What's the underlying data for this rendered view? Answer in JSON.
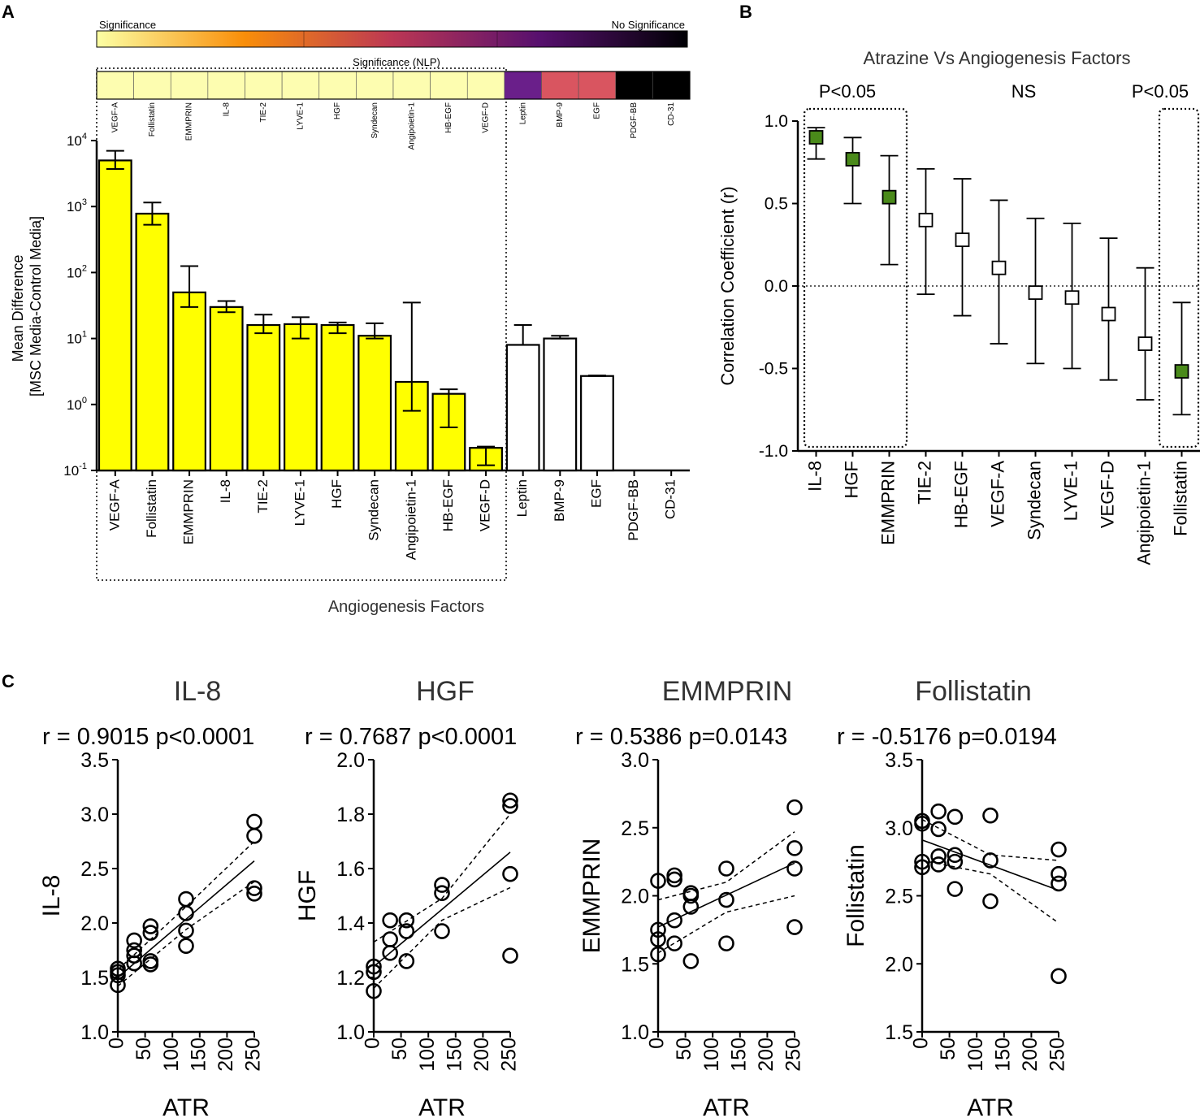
{
  "panels": {
    "a": "A",
    "b": "B",
    "c": "C"
  },
  "colors": {
    "significant_bar": "#ffff00",
    "nonsignificant_bar": "#ffffff",
    "significant_marker": "#4a8a1a",
    "nonsignificant_marker": "#ffffff",
    "nlp_scale": [
      "#fcffa4",
      "#f98e09",
      "#bc3754",
      "#57106e",
      "#000004"
    ]
  },
  "chart_data": [
    {
      "id": "panel-a",
      "type": "bar",
      "title": "",
      "xlabel": "Angiogenesis Factors",
      "ylabel_lines": [
        "Mean Difference",
        "[MSC Media-Control Media]"
      ],
      "yscale": "log",
      "ylim": [
        0.1,
        10000
      ],
      "yticks": [
        {
          "value": 0.1,
          "base": "10",
          "exp": "-1"
        },
        {
          "value": 1,
          "base": "10",
          "exp": "0"
        },
        {
          "value": 10,
          "base": "10",
          "exp": "1"
        },
        {
          "value": 100,
          "base": "10",
          "exp": "2"
        },
        {
          "value": 1000,
          "base": "10",
          "exp": "3"
        },
        {
          "value": 10000,
          "base": "10",
          "exp": "4"
        }
      ],
      "categories": [
        "VEGF-A",
        "Follistatin",
        "EMMPRIN",
        "IL-8",
        "TIE-2",
        "LYVE-1",
        "HGF",
        "Syndecan",
        "Angipoietin-1",
        "HB-EGF",
        "VEGF-D",
        "Leptin",
        "BMP-9",
        "EGF",
        "PDGF-BB",
        "CD-31"
      ],
      "values": [
        5000,
        780,
        50,
        30,
        16,
        16.5,
        16,
        11,
        2.2,
        1.45,
        0.22,
        8,
        10,
        2.7,
        null,
        null
      ],
      "err_low": [
        3700,
        530,
        30,
        25,
        12,
        10,
        12,
        10,
        0.8,
        0.45,
        0.12,
        null,
        10,
        2.7,
        null,
        null
      ],
      "err_high": [
        7000,
        1150,
        125,
        37,
        23,
        21,
        17.5,
        17,
        35,
        1.7,
        0.23,
        16,
        11,
        2.75,
        null,
        null
      ],
      "significant": [
        true,
        true,
        true,
        true,
        true,
        true,
        true,
        true,
        true,
        true,
        true,
        false,
        false,
        false,
        false,
        false
      ],
      "scale_labels": {
        "left": "Significance",
        "right": "No Significance"
      },
      "nlp_title": "Significance (NLP)",
      "nlp_colors": [
        "#fdfdb0",
        "#fdfdb0",
        "#fdfdb0",
        "#fdfdb0",
        "#fdfdb0",
        "#fdfdb0",
        "#fdfdb0",
        "#fdfdb0",
        "#fdfdb0",
        "#fdfdb0",
        "#fdfdb0",
        "#6a1f8a",
        "#d95560",
        "#d95560",
        "#000000",
        "#000000"
      ]
    },
    {
      "id": "panel-b",
      "type": "scatter",
      "title": "Atrazine Vs Angiogenesis Factors",
      "ylabel": "Correlation Coefficient (r)",
      "ylim": [
        -1.0,
        1.0
      ],
      "yticks": [
        "-1.0",
        "-0.5",
        "0.0",
        "0.5",
        "1.0"
      ],
      "group_labels": [
        "P<0.05",
        "NS",
        "P<0.05"
      ],
      "categories": [
        "IL-8",
        "HGF",
        "EMMPRIN",
        "TIE-2",
        "HB-EGF",
        "VEGF-A",
        "Syndecan",
        "LYVE-1",
        "VEGF-D",
        "Angipoietin-1",
        "Follistatin"
      ],
      "values": [
        0.9015,
        0.7687,
        0.5386,
        0.4,
        0.28,
        0.11,
        -0.04,
        -0.07,
        -0.17,
        -0.35,
        -0.5176
      ],
      "ci_low": [
        0.77,
        0.5,
        0.13,
        -0.05,
        -0.18,
        -0.35,
        -0.47,
        -0.5,
        -0.57,
        -0.69,
        -0.78
      ],
      "ci_high": [
        0.96,
        0.9,
        0.79,
        0.71,
        0.65,
        0.52,
        0.41,
        0.38,
        0.29,
        0.11,
        -0.1
      ],
      "significant": [
        true,
        true,
        true,
        false,
        false,
        false,
        false,
        false,
        false,
        false,
        true
      ]
    },
    {
      "id": "panel-c1",
      "type": "scatter",
      "title": "IL-8",
      "stats": "r = 0.9015  p<0.0001",
      "xlabel": "ATR",
      "ylabel": "IL-8",
      "xlim": [
        0,
        250
      ],
      "ylim": [
        1.0,
        3.5
      ],
      "xticks": [
        "0",
        "50",
        "100",
        "150",
        "200",
        "250"
      ],
      "yticks": [
        "1.0",
        "1.5",
        "2.0",
        "2.5",
        "3.0",
        "3.5"
      ],
      "x": [
        0,
        0,
        0,
        0,
        30,
        30,
        30,
        30,
        60,
        60,
        60,
        60,
        125,
        125,
        125,
        125,
        250,
        250,
        250,
        250
      ],
      "y": [
        1.43,
        1.52,
        1.55,
        1.58,
        1.63,
        1.7,
        1.75,
        1.84,
        1.62,
        1.65,
        1.91,
        1.97,
        1.79,
        1.93,
        2.09,
        2.22,
        2.27,
        2.32,
        2.8,
        2.93
      ],
      "fit": [
        [
          0,
          1.5
        ],
        [
          250,
          2.57
        ]
      ],
      "ci_upper": [
        [
          0,
          1.57
        ],
        [
          125,
          2.15
        ],
        [
          250,
          2.75
        ]
      ],
      "ci_lower": [
        [
          0,
          1.42
        ],
        [
          125,
          1.94
        ],
        [
          250,
          2.38
        ]
      ]
    },
    {
      "id": "panel-c2",
      "type": "scatter",
      "title": "HGF",
      "stats": "r = 0.7687  p<0.0001",
      "xlabel": "ATR",
      "ylabel": "HGF",
      "xlim": [
        0,
        250
      ],
      "ylim": [
        1.0,
        2.0
      ],
      "xticks": [
        "0",
        "50",
        "100",
        "150",
        "200",
        "250"
      ],
      "yticks": [
        "1.0",
        "1.2",
        "1.4",
        "1.6",
        "1.8",
        "2.0"
      ],
      "x": [
        0,
        0,
        0,
        30,
        30,
        30,
        60,
        60,
        60,
        125,
        125,
        125,
        250,
        250,
        250,
        250
      ],
      "y": [
        1.15,
        1.22,
        1.24,
        1.29,
        1.34,
        1.41,
        1.26,
        1.37,
        1.41,
        1.37,
        1.51,
        1.54,
        1.28,
        1.58,
        1.83,
        1.85
      ],
      "fit": [
        [
          0,
          1.24
        ],
        [
          250,
          1.66
        ]
      ],
      "ci_upper": [
        [
          0,
          1.33
        ],
        [
          125,
          1.49
        ],
        [
          250,
          1.8
        ]
      ],
      "ci_lower": [
        [
          0,
          1.16
        ],
        [
          125,
          1.41
        ],
        [
          250,
          1.53
        ]
      ]
    },
    {
      "id": "panel-c3",
      "type": "scatter",
      "title": "EMMPRIN",
      "stats": "r = 0.5386 p=0.0143",
      "xlabel": "ATR",
      "ylabel": "EMMPRIN",
      "xlim": [
        0,
        250
      ],
      "ylim": [
        1.0,
        3.0
      ],
      "xticks": [
        "0",
        "50",
        "100",
        "150",
        "200",
        "250"
      ],
      "yticks": [
        "1.0",
        "1.5",
        "2.0",
        "2.5",
        "3.0"
      ],
      "x": [
        0,
        0,
        0,
        0,
        30,
        30,
        30,
        30,
        60,
        60,
        60,
        60,
        125,
        125,
        125,
        250,
        250,
        250,
        250
      ],
      "y": [
        1.57,
        1.68,
        1.75,
        2.11,
        1.65,
        1.82,
        2.12,
        2.15,
        1.52,
        1.92,
        2.0,
        2.02,
        1.65,
        1.97,
        2.2,
        1.77,
        2.2,
        2.35,
        2.65
      ],
      "fit": [
        [
          0,
          1.77
        ],
        [
          250,
          2.24
        ]
      ],
      "ci_upper": [
        [
          0,
          1.97
        ],
        [
          125,
          2.1
        ],
        [
          250,
          2.47
        ]
      ],
      "ci_lower": [
        [
          0,
          1.58
        ],
        [
          125,
          1.88
        ],
        [
          250,
          2.0
        ]
      ]
    },
    {
      "id": "panel-c4",
      "type": "scatter",
      "title": "Follistatin",
      "stats": "r = -0.5176 p=0.0194",
      "xlabel": "ATR",
      "ylabel": "Follistatin",
      "xlim": [
        0,
        250
      ],
      "ylim": [
        1.5,
        3.5
      ],
      "xticks": [
        "0",
        "50",
        "100",
        "150",
        "200",
        "250"
      ],
      "yticks": [
        "1.5",
        "2.0",
        "2.5",
        "3.0",
        "3.5"
      ],
      "x": [
        0,
        0,
        0,
        0,
        30,
        30,
        30,
        30,
        60,
        60,
        60,
        60,
        125,
        125,
        125,
        250,
        250,
        250,
        250
      ],
      "y": [
        2.71,
        2.75,
        3.03,
        3.05,
        2.73,
        2.79,
        2.99,
        3.12,
        2.55,
        2.75,
        2.8,
        3.08,
        2.46,
        2.76,
        3.09,
        1.91,
        2.59,
        2.66,
        2.84
      ],
      "fit": [
        [
          0,
          2.91
        ],
        [
          250,
          2.54
        ]
      ],
      "ci_upper": [
        [
          0,
          3.06
        ],
        [
          125,
          2.8
        ],
        [
          250,
          2.76
        ]
      ],
      "ci_lower": [
        [
          0,
          2.76
        ],
        [
          125,
          2.66
        ],
        [
          250,
          2.3
        ]
      ]
    }
  ]
}
